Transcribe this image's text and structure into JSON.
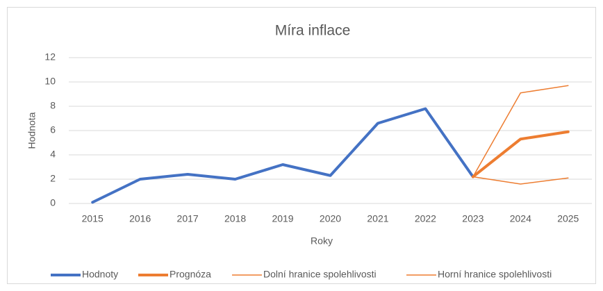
{
  "chart_data": {
    "type": "line",
    "title": "Míra inflace",
    "x_label": "Roky",
    "y_label": "Hodnota",
    "categories": [
      "2015",
      "2016",
      "2017",
      "2018",
      "2019",
      "2020",
      "2021",
      "2022",
      "2023",
      "2024",
      "2025"
    ],
    "series": [
      {
        "name": "Hodnoty",
        "color": "#4472c4",
        "width": 4,
        "values": [
          0.1,
          2.0,
          2.4,
          2.0,
          3.2,
          2.3,
          6.6,
          7.8,
          2.2,
          null,
          null
        ]
      },
      {
        "name": "Prognóza",
        "color": "#ed7d31",
        "width": 4,
        "values": [
          null,
          null,
          null,
          null,
          null,
          null,
          null,
          null,
          2.2,
          5.3,
          5.9
        ]
      },
      {
        "name": "Dolní hranice spolehlivosti",
        "color": "#ed7d31",
        "width": 1.5,
        "values": [
          null,
          null,
          null,
          null,
          null,
          null,
          null,
          null,
          2.2,
          1.6,
          2.1
        ]
      },
      {
        "name": "Horní hranice spolehlivosti",
        "color": "#ed7d31",
        "width": 1.5,
        "values": [
          null,
          null,
          null,
          null,
          null,
          null,
          null,
          null,
          2.2,
          9.1,
          9.7
        ]
      }
    ],
    "ylim": [
      0,
      12
    ],
    "yticks": [
      0,
      2,
      4,
      6,
      8,
      10,
      12
    ],
    "grid": true,
    "legend": "bottom"
  }
}
